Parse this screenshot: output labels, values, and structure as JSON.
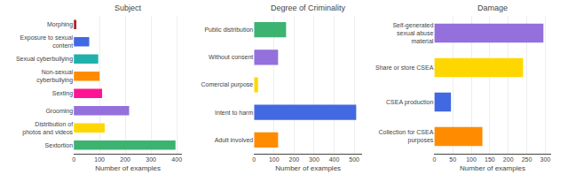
{
  "chart_data": [
    {
      "type": "bar",
      "orientation": "horizontal",
      "title": "Subject",
      "categories": [
        "Morphing",
        "Exposure to sexual\ncontent",
        "Sexual cyberbullying",
        "Non-sexual\ncyberbullying",
        "Sexting",
        "Grooming",
        "Distribution of\nphotos and videos",
        "Sextortion"
      ],
      "values": [
        10,
        60,
        95,
        100,
        110,
        215,
        120,
        395
      ],
      "colors": [
        "#b22222",
        "#4169e1",
        "#20b2aa",
        "#ff8c00",
        "#ff1493",
        "#9370db",
        "#ffd700",
        "#3cb371"
      ],
      "xlabel": "Number of examples",
      "xlim": [
        0,
        420
      ],
      "xticks": [
        0,
        100,
        200,
        300,
        400
      ],
      "grid": true
    },
    {
      "type": "bar",
      "orientation": "horizontal",
      "title": "Degree of Criminality",
      "categories": [
        "Public distribution",
        "Without consent",
        "Comercial purpose",
        "Intent to harm",
        "Adult involved"
      ],
      "values": [
        160,
        120,
        20,
        510,
        120
      ],
      "colors": [
        "#3cb371",
        "#9370db",
        "#ffd700",
        "#4169e1",
        "#ff8c00"
      ],
      "xlabel": "Number of examples",
      "xlim": [
        0,
        540
      ],
      "xticks": [
        0,
        100,
        200,
        300,
        400,
        500
      ],
      "grid": true
    },
    {
      "type": "bar",
      "orientation": "horizontal",
      "title": "Damage",
      "categories": [
        "Self-generated\nsexual abuse\nmaterial",
        "Share or store CSEA",
        "CSEA production",
        "Collection for CSEA\npurposes"
      ],
      "values": [
        295,
        240,
        45,
        130
      ],
      "colors": [
        "#9370db",
        "#ffd700",
        "#4169e1",
        "#ff8c00"
      ],
      "xlabel": "Number of examples",
      "xlim": [
        0,
        315
      ],
      "xticks": [
        0,
        50,
        100,
        150,
        200,
        250,
        300
      ],
      "grid": true
    }
  ]
}
